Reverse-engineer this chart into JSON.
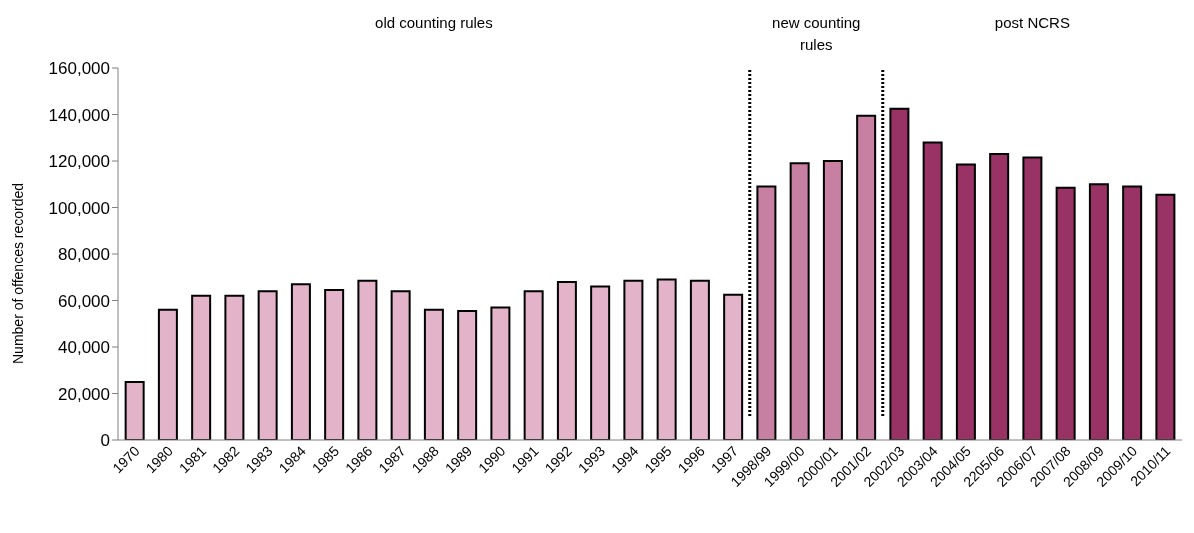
{
  "chart_data": {
    "type": "bar",
    "ylabel": "Number of offences recorded",
    "categories": [
      "1970",
      "1980",
      "1981",
      "1982",
      "1983",
      "1984",
      "1985",
      "1986",
      "1987",
      "1988",
      "1989",
      "1990",
      "1991",
      "1992",
      "1993",
      "1994",
      "1995",
      "1996",
      "1997",
      "1998/99",
      "1999/00",
      "2000/01",
      "2001/02",
      "2002/03",
      "2003/04",
      "2004/05",
      "2205/06",
      "2006/07",
      "2007/08",
      "2008/09",
      "2009/10",
      "2010/11"
    ],
    "values": [
      25000,
      56000,
      62000,
      62000,
      64000,
      67000,
      64500,
      68500,
      64000,
      56000,
      55500,
      57000,
      64000,
      68000,
      66000,
      68500,
      69000,
      68500,
      62500,
      109000,
      119000,
      120000,
      139500,
      142500,
      128000,
      118500,
      123000,
      121500,
      108500,
      110000,
      109000,
      105500
    ],
    "colors": [
      "#e3b3c9",
      "#e3b3c9",
      "#e3b3c9",
      "#e3b3c9",
      "#e3b3c9",
      "#e3b3c9",
      "#e3b3c9",
      "#e3b3c9",
      "#e3b3c9",
      "#e3b3c9",
      "#e3b3c9",
      "#e3b3c9",
      "#e3b3c9",
      "#e3b3c9",
      "#e3b3c9",
      "#e3b3c9",
      "#e3b3c9",
      "#e3b3c9",
      "#e3b3c9",
      "#c77fa2",
      "#c77fa2",
      "#c77fa2",
      "#c77fa2",
      "#993366",
      "#993366",
      "#993366",
      "#993366",
      "#993366",
      "#993366",
      "#993366",
      "#993366",
      "#993366"
    ],
    "ylim": [
      0,
      160000
    ],
    "yticks": [
      0,
      {
        "value": 20000,
        "label": "20,000"
      },
      {
        "value": 40000,
        "label": "40,000"
      },
      {
        "value": 60000,
        "label": "60,000"
      },
      {
        "value": 80000,
        "label": "80,000"
      },
      {
        "value": 100000,
        "label": "100,000"
      },
      {
        "value": 120000,
        "label": "120,000"
      },
      {
        "value": 140000,
        "label": "140,000"
      },
      {
        "value": 160000,
        "label": "160,000"
      }
    ],
    "ref_lines": [
      {
        "axis": "x",
        "value": "1998/99",
        "line_style": "dotted",
        "color": "#000000"
      },
      {
        "axis": "x",
        "value": "2002/03",
        "line_style": "dotted",
        "color": "#000000"
      }
    ],
    "annotations": [
      "old counting rules",
      "new counting rules",
      "post NCRS"
    ],
    "grid": false,
    "legend": false
  }
}
